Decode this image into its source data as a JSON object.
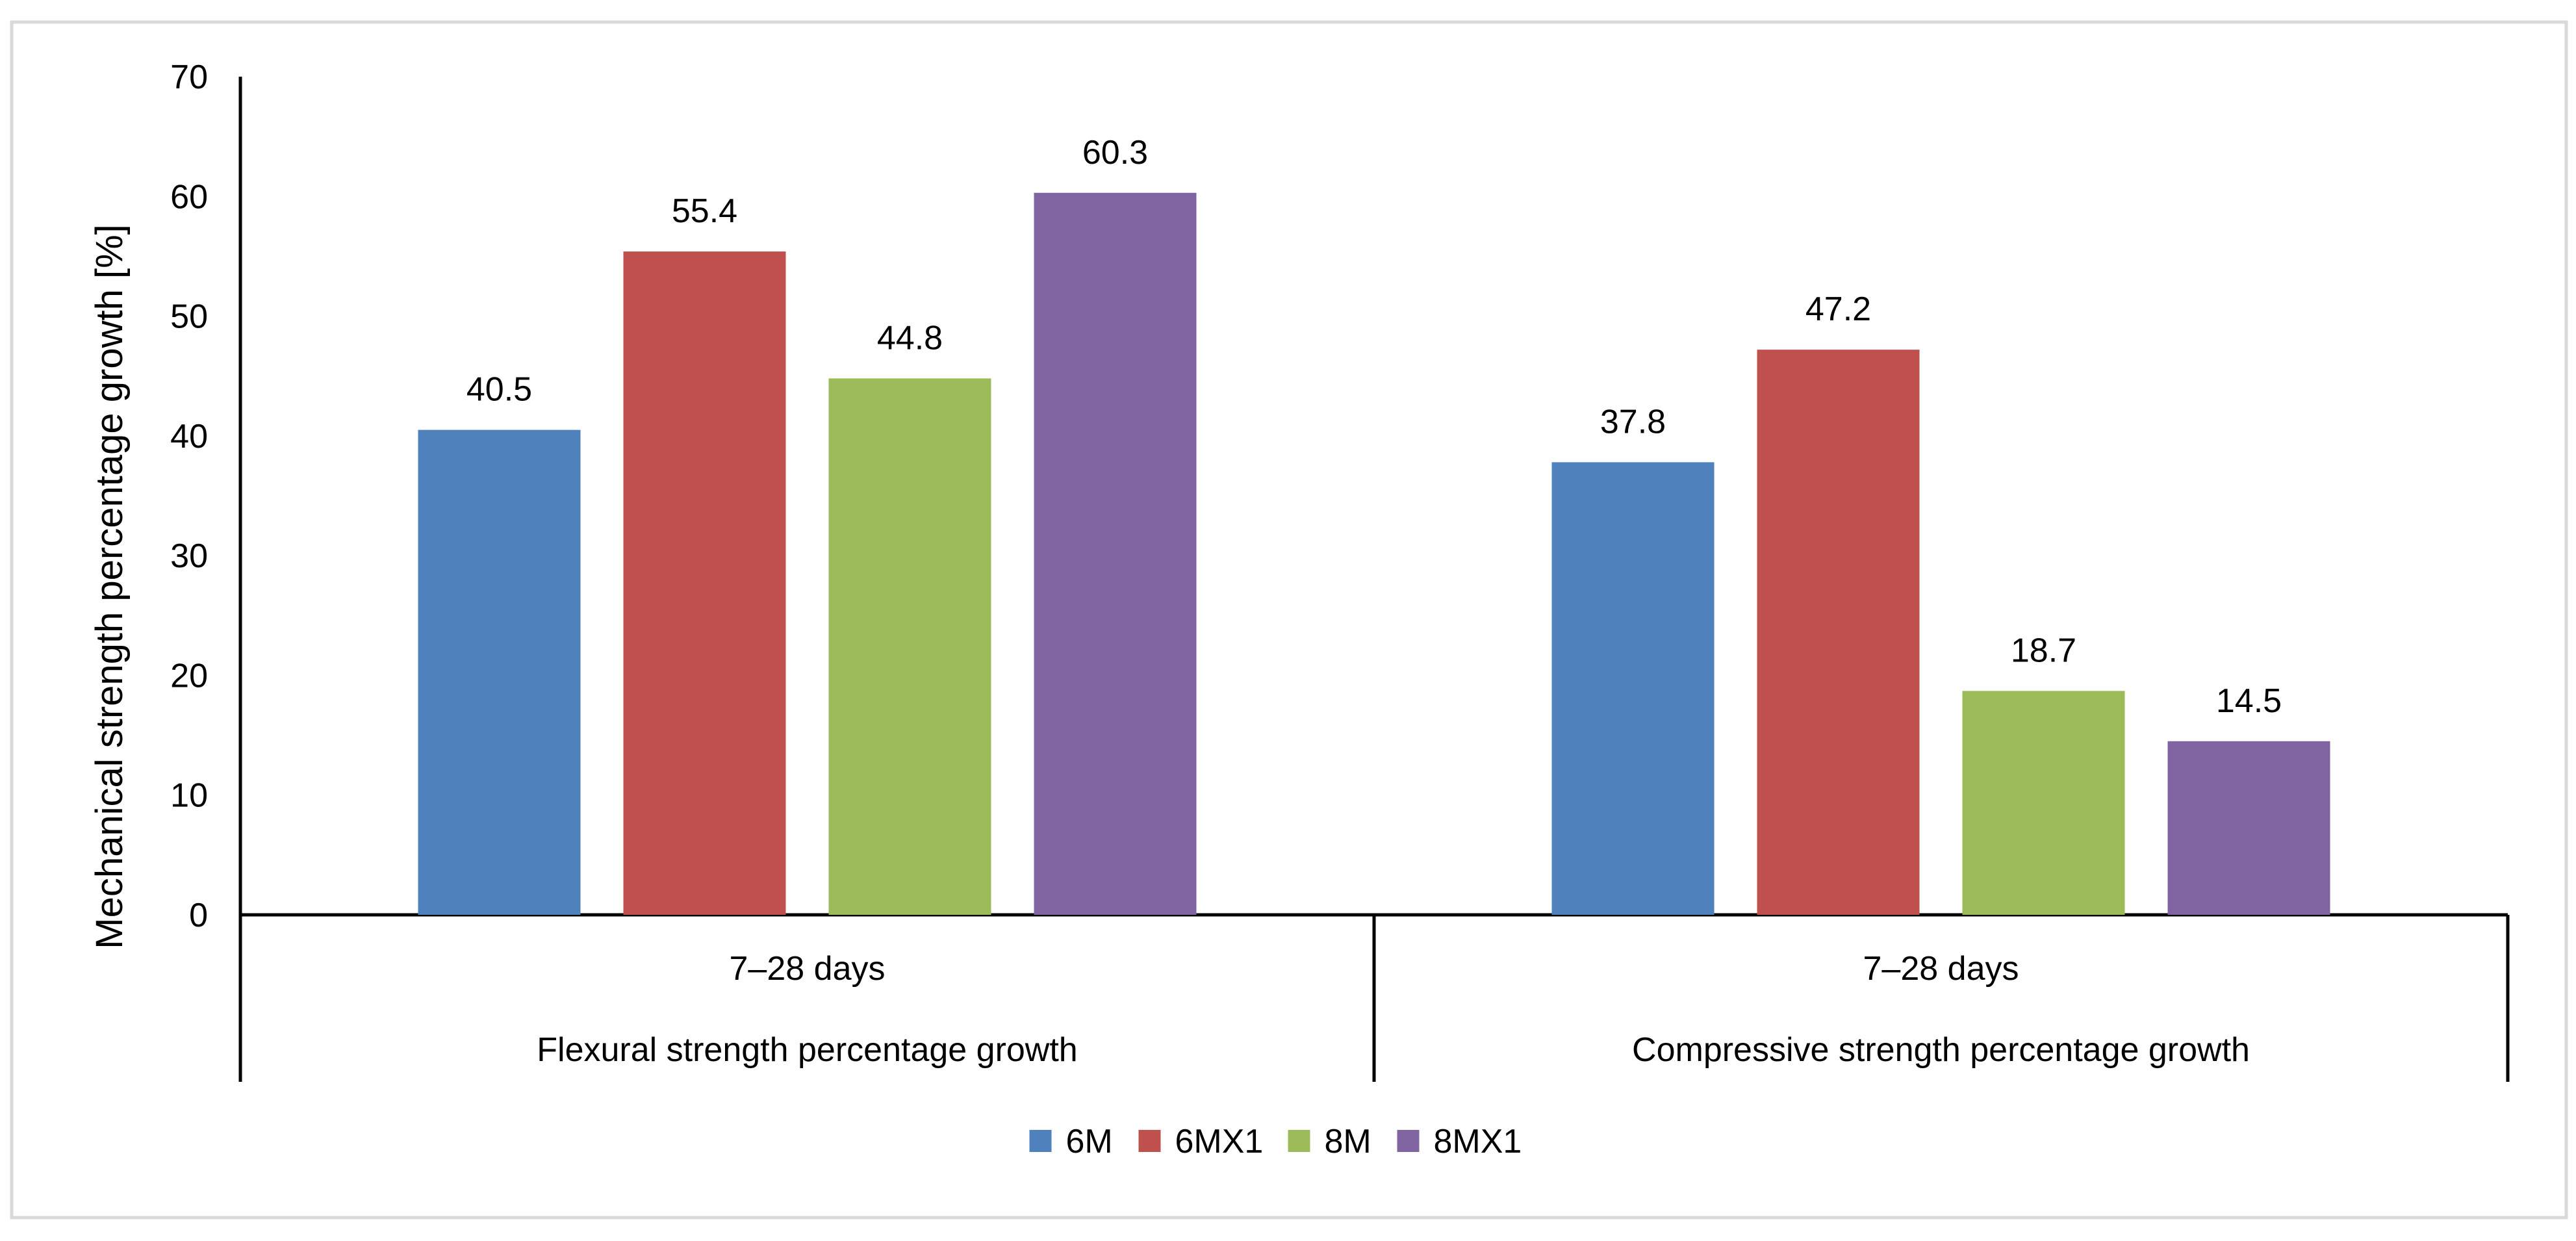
{
  "chart_data": {
    "type": "bar",
    "ylabel": "Mechanical strength percentage growth [%]",
    "ylim": [
      0,
      70
    ],
    "yticks": [
      0,
      10,
      20,
      30,
      40,
      50,
      60,
      70
    ],
    "grid": false,
    "legend_position": "bottom-center",
    "groups": [
      {
        "sublabel": "7–28 days",
        "label": "Flexural strength percentage growth"
      },
      {
        "sublabel": "7–28 days",
        "label": "Compressive strength percentage growth"
      }
    ],
    "series": [
      {
        "name": "6M",
        "color": "#4F81BD",
        "values": [
          40.5,
          37.8
        ]
      },
      {
        "name": "6MX1",
        "color": "#C0504D",
        "values": [
          55.4,
          47.2
        ]
      },
      {
        "name": "8M",
        "color": "#9BBB59",
        "values": [
          44.8,
          18.7
        ]
      },
      {
        "name": "8MX1",
        "color": "#8064A2",
        "values": [
          60.3,
          14.5
        ]
      }
    ]
  },
  "style": {
    "axis_color": "#000000",
    "text_color": "#000000",
    "frame_color": "#D9D9D9"
  }
}
